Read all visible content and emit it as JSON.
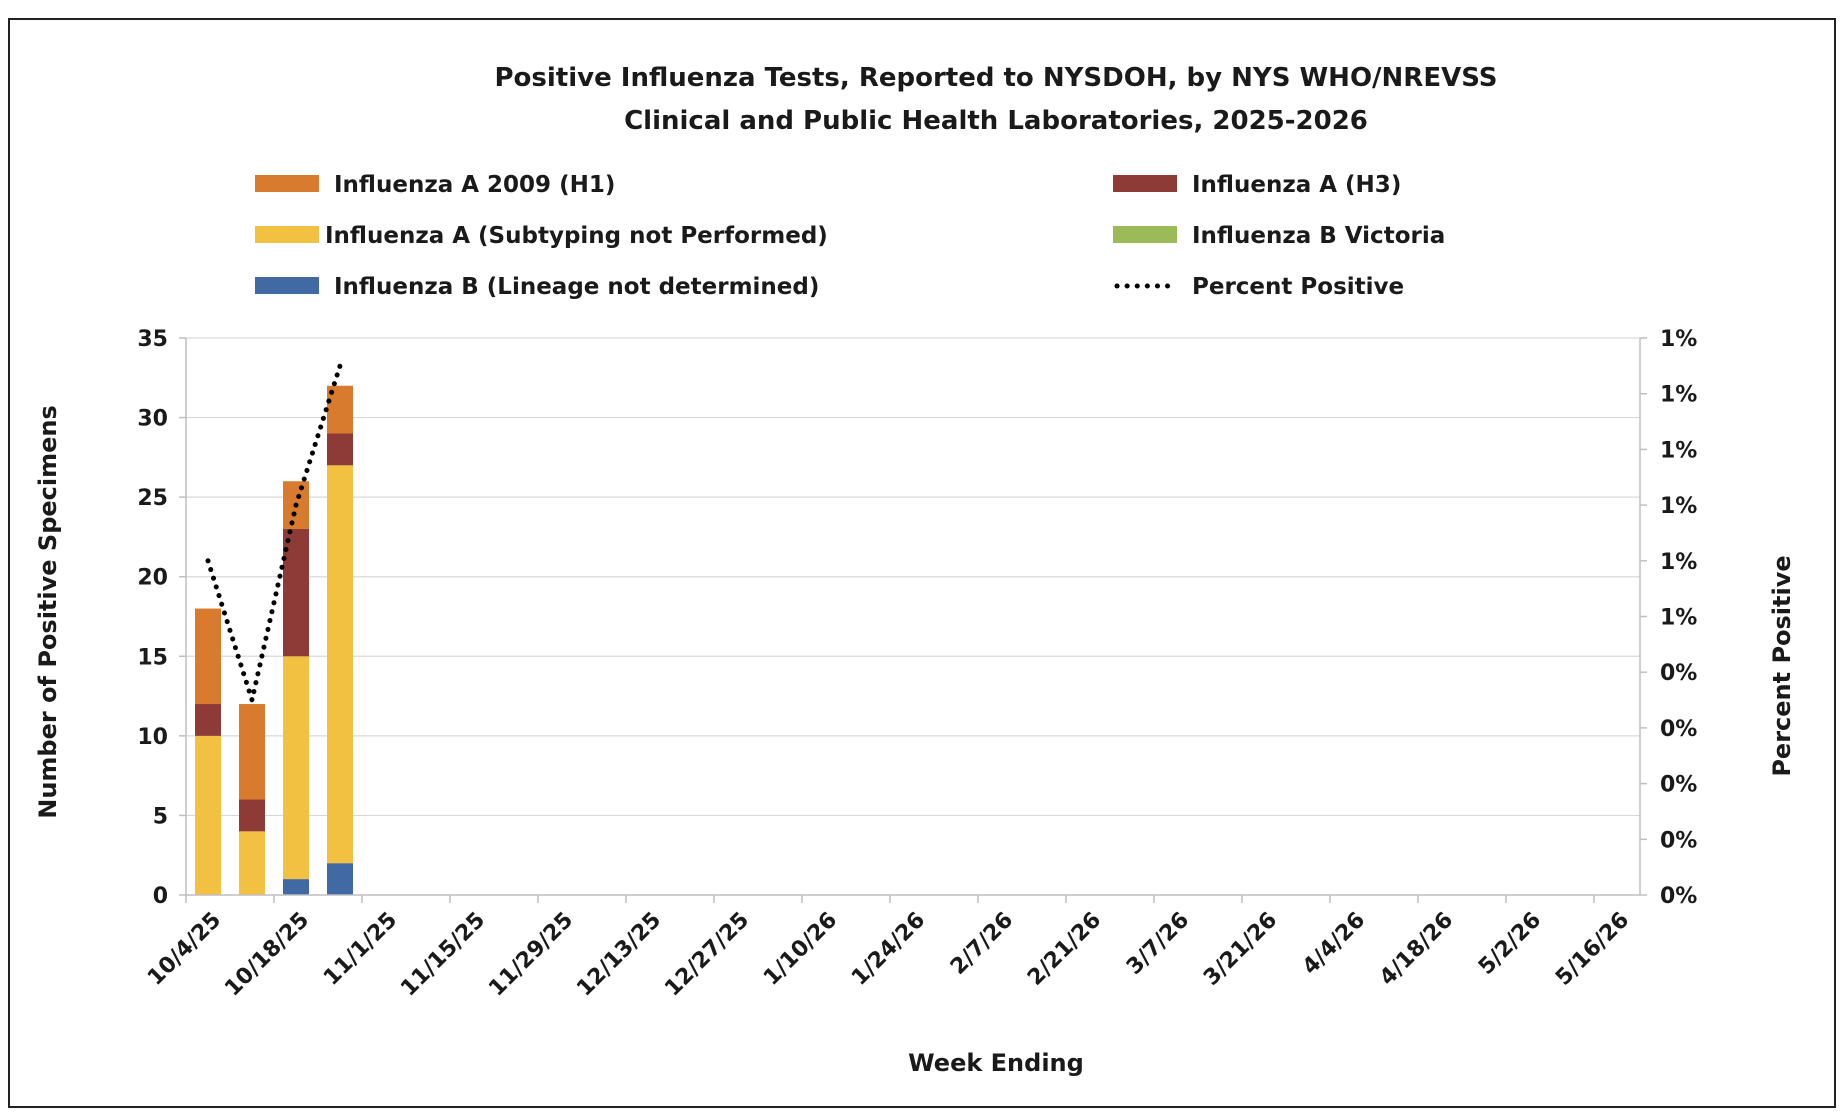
{
  "chart_data": {
    "type": "bar",
    "stacked": true,
    "title": "Positive Influenza Tests, Reported to NYSDOH, by NYS WHO/NREVSS",
    "subtitle": "Clinical and Public Health Laboratories, 2025-2026",
    "xlabel": "Week Ending",
    "ylabel": "Number of Positive Specimens",
    "y2label": "Percent Positive",
    "ylim": [
      0,
      35
    ],
    "y_ticks": [
      "0",
      "5",
      "10",
      "15",
      "20",
      "25",
      "30",
      "35"
    ],
    "y2_ticks": [
      "0%",
      "0%",
      "0%",
      "0%",
      "0%",
      "1%",
      "1%",
      "1%",
      "1%",
      "1%",
      "1%"
    ],
    "x_tick_labels": [
      "10/4/25",
      "10/18/25",
      "11/1/25",
      "11/15/25",
      "11/29/25",
      "12/13/25",
      "12/27/25",
      "1/10/26",
      "1/24/26",
      "2/7/26",
      "2/21/26",
      "3/7/26",
      "3/21/26",
      "4/4/26",
      "4/18/26",
      "5/2/26",
      "5/16/26"
    ],
    "categories": [
      "10/4/25",
      "10/11/25",
      "10/18/25",
      "10/25/25"
    ],
    "series": [
      {
        "name": "Influenza B (Lineage not determined)",
        "color": "#4169a4",
        "values": [
          0,
          0,
          1,
          2
        ]
      },
      {
        "name": "Influenza B Victoria",
        "color": "#9bbb59",
        "values": [
          0,
          0,
          0,
          0
        ]
      },
      {
        "name": "Influenza A (Subtyping not Performed)",
        "color": "#f2c141",
        "values": [
          10,
          4,
          14,
          25
        ]
      },
      {
        "name": "Influenza A (H3)",
        "color": "#8e3a36",
        "values": [
          2,
          2,
          8,
          2
        ]
      },
      {
        "name": "Influenza A 2009 (H1)",
        "color": "#d97b2f",
        "values": [
          6,
          6,
          3,
          3
        ]
      }
    ],
    "percent_positive": {
      "name": "Percent Positive",
      "color": "#000000",
      "values": [
        1.2,
        0.7,
        1.4,
        1.9
      ],
      "y2lim": [
        0,
        2.0
      ]
    },
    "legend_position": "top",
    "grid": true
  },
  "legend": [
    {
      "label": "Influenza A 2009 (H1)",
      "color": "#d97b2f",
      "kind": "bar"
    },
    {
      "label": "Influenza A (H3)",
      "color": "#8e3a36",
      "kind": "bar"
    },
    {
      "label": "Influenza A (Subtyping not Performed)",
      "color": "#f2c141",
      "kind": "bar"
    },
    {
      "label": "Influenza B Victoria",
      "color": "#9bbb59",
      "kind": "bar"
    },
    {
      "label": "Influenza B (Lineage not determined)",
      "color": "#4169a4",
      "kind": "bar"
    },
    {
      "label": "Percent Positive",
      "color": "#000000",
      "kind": "dotted-line"
    }
  ]
}
